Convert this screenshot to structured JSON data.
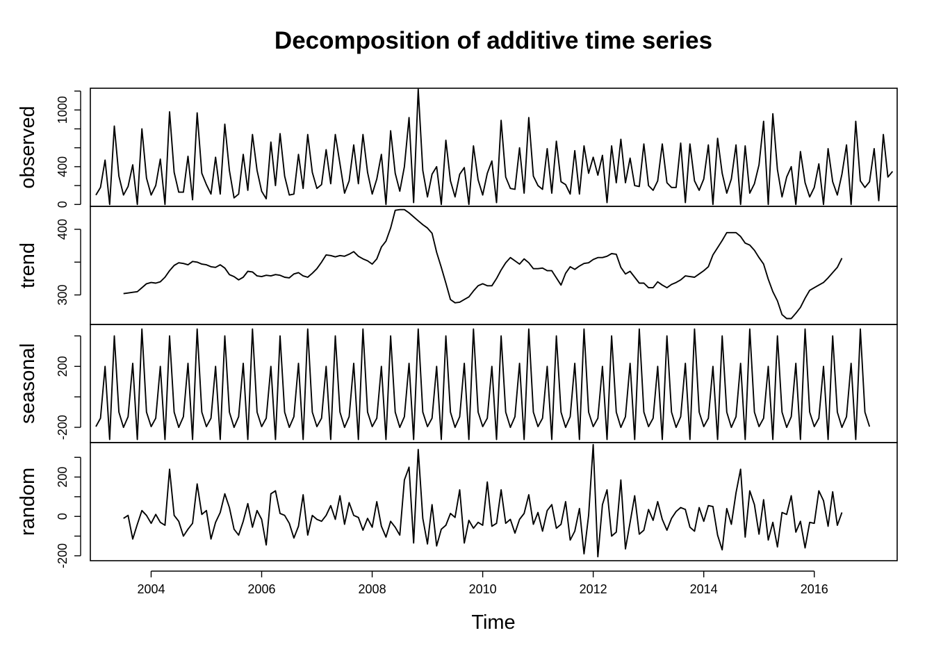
{
  "chart_data": {
    "type": "line",
    "title": "Decomposition of additive time series",
    "xlabel": "Time",
    "x_range": [
      2002.9,
      2017.5
    ],
    "x_ticks": [
      "2004",
      "2006",
      "2008",
      "2010",
      "2012",
      "2014",
      "2016"
    ],
    "x_tick_values": [
      2004,
      2006,
      2008,
      2010,
      2012,
      2014,
      2016
    ],
    "start": 2003.0,
    "frequency": 12,
    "line_color": "#000000",
    "panels": [
      {
        "name": "observed",
        "ylabel": "observed",
        "ylim": [
          -20,
          1230
        ],
        "y_ticks": [
          0,
          200,
          400,
          600,
          800,
          1000,
          1200
        ],
        "y_tick_labels": [
          "0",
          "",
          "400",
          "",
          "",
          "1000",
          ""
        ],
        "start": 2003.0,
        "values": [
          100,
          180,
          470,
          0,
          830,
          300,
          100,
          190,
          420,
          0,
          800,
          280,
          100,
          200,
          480,
          0,
          980,
          340,
          130,
          130,
          510,
          50,
          970,
          330,
          210,
          110,
          500,
          110,
          850,
          360,
          70,
          110,
          530,
          150,
          740,
          360,
          140,
          60,
          660,
          200,
          750,
          300,
          100,
          110,
          530,
          170,
          740,
          340,
          170,
          210,
          580,
          220,
          740,
          430,
          120,
          250,
          630,
          220,
          740,
          340,
          110,
          270,
          530,
          0,
          780,
          330,
          140,
          400,
          920,
          20,
          1220,
          360,
          80,
          320,
          400,
          0,
          680,
          250,
          80,
          320,
          390,
          0,
          620,
          260,
          100,
          330,
          460,
          20,
          890,
          290,
          170,
          160,
          600,
          120,
          920,
          300,
          200,
          160,
          590,
          120,
          670,
          240,
          210,
          110,
          570,
          110,
          620,
          330,
          500,
          310,
          520,
          20,
          620,
          230,
          690,
          230,
          490,
          200,
          190,
          640,
          200,
          150,
          250,
          640,
          230,
          180,
          180,
          650,
          20,
          640,
          250,
          150,
          270,
          630,
          0,
          700,
          330,
          120,
          270,
          630,
          0,
          620,
          120,
          220,
          420,
          880,
          0,
          960,
          370,
          80,
          290,
          400,
          0,
          560,
          230,
          80,
          180,
          430,
          0,
          590,
          240,
          100,
          320,
          630,
          0,
          880,
          250,
          180,
          240,
          590,
          40,
          740,
          290,
          350
        ]
      },
      {
        "name": "trend",
        "ylabel": "trend",
        "ylim": [
          255,
          435
        ],
        "y_ticks": [
          300,
          350,
          400
        ],
        "y_tick_labels": [
          "300",
          "",
          "400"
        ],
        "start": 2003.5,
        "values": [
          302,
          303,
          304,
          305,
          311,
          317,
          319,
          318,
          320,
          327,
          337,
          345,
          349,
          348,
          346,
          351,
          350,
          347,
          346,
          343,
          342,
          346,
          341,
          331,
          328,
          323,
          327,
          336,
          335,
          329,
          328,
          330,
          329,
          331,
          330,
          327,
          326,
          332,
          334,
          329,
          327,
          333,
          340,
          350,
          361,
          360,
          358,
          360,
          359,
          362,
          366,
          359,
          355,
          352,
          347,
          355,
          373,
          382,
          402,
          429,
          430,
          430,
          425,
          419,
          413,
          407,
          402,
          394,
          365,
          342,
          318,
          293,
          288,
          289,
          293,
          297,
          306,
          314,
          317,
          314,
          314,
          325,
          338,
          349,
          357,
          352,
          347,
          355,
          349,
          340,
          340,
          341,
          337,
          337,
          326,
          315,
          333,
          343,
          339,
          344,
          348,
          349,
          354,
          357,
          357,
          359,
          363,
          362,
          342,
          332,
          336,
          327,
          318,
          318,
          311,
          311,
          320,
          315,
          311,
          316,
          319,
          323,
          329,
          328,
          327,
          332,
          337,
          343,
          361,
          372,
          383,
          395,
          395,
          395,
          389,
          379,
          376,
          368,
          357,
          347,
          324,
          305,
          291,
          270,
          264,
          264,
          272,
          281,
          295,
          307,
          311,
          315,
          319,
          326,
          334,
          342,
          356
        ]
      },
      {
        "name": "seasonal",
        "ylabel": "seasonal",
        "ylim": [
          -300,
          475
        ],
        "y_ticks": [
          -200,
          0,
          200,
          400
        ],
        "y_tick_labels": [
          "-200",
          "",
          "200",
          ""
        ],
        "start": 2003.0,
        "values": [
          -195,
          -140,
          200,
          -280,
          400,
          -100,
          -200,
          -130,
          220,
          -280,
          445,
          -100,
          -195,
          -140,
          200,
          -280,
          400,
          -100,
          -200,
          -130,
          220,
          -280,
          445,
          -100,
          -195,
          -140,
          200,
          -280,
          400,
          -100,
          -200,
          -130,
          220,
          -280,
          445,
          -100,
          -195,
          -140,
          200,
          -280,
          400,
          -100,
          -200,
          -130,
          220,
          -280,
          445,
          -100,
          -195,
          -140,
          200,
          -280,
          400,
          -100,
          -200,
          -130,
          220,
          -280,
          445,
          -100,
          -195,
          -140,
          200,
          -280,
          400,
          -100,
          -200,
          -130,
          220,
          -280,
          445,
          -100,
          -195,
          -140,
          200,
          -280,
          400,
          -100,
          -200,
          -130,
          220,
          -280,
          445,
          -100,
          -195,
          -140,
          200,
          -280,
          400,
          -100,
          -200,
          -130,
          220,
          -280,
          445,
          -100,
          -195,
          -140,
          200,
          -280,
          400,
          -100,
          -200,
          -130,
          220,
          -280,
          445,
          -100,
          -195,
          -140,
          200,
          -280,
          400,
          -100,
          -200,
          -130,
          220,
          -280,
          445,
          -100,
          -195,
          -140,
          200,
          -280,
          400,
          -100,
          -200,
          -130,
          220,
          -280,
          445,
          -100,
          -195,
          -140,
          200,
          -280,
          400,
          -100,
          -200,
          -130,
          220,
          -280,
          445,
          -100,
          -195,
          -140,
          200,
          -280,
          400,
          -100,
          -200,
          -130,
          220,
          -280,
          445,
          -100,
          -195,
          -140,
          200,
          -280,
          400,
          -100,
          -200,
          -130,
          220,
          -280,
          445,
          -100,
          -195
        ]
      },
      {
        "name": "random",
        "ylabel": "random",
        "ylim": [
          -225,
          375
        ],
        "y_ticks": [
          -200,
          -100,
          0,
          100,
          200,
          300
        ],
        "y_tick_labels": [
          "-200",
          "",
          "0",
          "",
          "200",
          ""
        ],
        "start": 2003.5,
        "values": [
          -10,
          5,
          -115,
          -40,
          30,
          5,
          -35,
          10,
          -30,
          -45,
          240,
          5,
          -25,
          -100,
          -65,
          -35,
          165,
          10,
          30,
          -115,
          -30,
          20,
          115,
          45,
          -65,
          -95,
          -25,
          65,
          -55,
          30,
          -15,
          -145,
          115,
          130,
          15,
          5,
          -35,
          -110,
          -50,
          110,
          -95,
          5,
          -15,
          -25,
          5,
          55,
          -15,
          105,
          -40,
          70,
          5,
          -5,
          -70,
          -10,
          -55,
          75,
          -50,
          -105,
          -25,
          -55,
          -95,
          185,
          250,
          -135,
          340,
          -10,
          -140,
          60,
          -150,
          -65,
          -45,
          15,
          -5,
          135,
          -135,
          -20,
          -60,
          -30,
          -45,
          175,
          -50,
          -35,
          135,
          -35,
          -15,
          -85,
          -15,
          15,
          110,
          -40,
          20,
          -75,
          30,
          60,
          -60,
          -40,
          75,
          -120,
          -75,
          40,
          -190,
          5,
          365,
          -205,
          60,
          135,
          -100,
          -80,
          185,
          -165,
          -30,
          105,
          -90,
          -70,
          35,
          -20,
          75,
          -15,
          -70,
          -10,
          25,
          45,
          35,
          -55,
          -75,
          45,
          -25,
          55,
          50,
          -95,
          -170,
          40,
          -40,
          120,
          240,
          -105,
          130,
          60,
          -90,
          85,
          -120,
          -30,
          -155,
          20,
          10,
          105,
          -80,
          -25,
          -160,
          -30,
          -35,
          130,
          80,
          -50,
          125,
          -45,
          20
        ]
      }
    ]
  }
}
